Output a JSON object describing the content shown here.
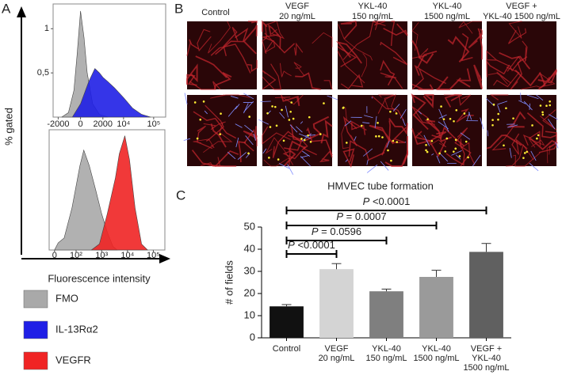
{
  "panel_labels": [
    "A",
    "B",
    "C"
  ],
  "chart_data": [
    {
      "type": "area",
      "ylabel": "% gated",
      "xscale": "asinh",
      "xlim": [
        -3000,
        250000
      ],
      "xticks": [
        -2000,
        0,
        2000,
        {
          "value": 10000,
          "label": "10⁴"
        },
        {
          "value": 100000,
          "label": "10⁵"
        }
      ],
      "ylim": [
        0,
        1.28
      ],
      "yticks": [
        1,
        {
          "value": 0.5,
          "label": "0,5"
        }
      ],
      "series": [
        {
          "name": "FMO",
          "color": "#a9a9a9",
          "x": [
            -1500,
            -800,
            -400,
            -200,
            0,
            200,
            400,
            800,
            1500,
            3000
          ],
          "values": [
            0,
            0.05,
            0.3,
            0.7,
            1.2,
            0.9,
            0.5,
            0.15,
            0.03,
            0
          ]
        },
        {
          "name": "IL-13Rα2",
          "color": "#1f1fe6",
          "x": [
            -500,
            0,
            500,
            1000,
            1500,
            2000,
            3000,
            5000,
            10000,
            20000,
            40000,
            80000
          ],
          "values": [
            0,
            0.15,
            0.4,
            0.55,
            0.5,
            0.45,
            0.4,
            0.33,
            0.22,
            0.1,
            0.03,
            0
          ]
        }
      ]
    },
    {
      "type": "area",
      "xlabel": "Fluorescence intensity",
      "xscale": "asinh",
      "xlim": [
        -15,
        280000
      ],
      "xticks": [
        0,
        {
          "value": 100,
          "label": "10²"
        },
        {
          "value": 1000,
          "label": "10³"
        },
        {
          "value": 10000,
          "label": "10⁴"
        },
        {
          "value": 100000,
          "label": "10⁵"
        }
      ],
      "ylim": [
        0,
        1
      ],
      "series": [
        {
          "name": "FMO",
          "color": "#a9a9a9",
          "x": [
            0,
            10,
            29,
            68,
            142,
            202,
            333,
            585,
            1000,
            1650,
            2720,
            4000
          ],
          "values": [
            0,
            0.06,
            0.1,
            0.35,
            0.7,
            0.83,
            0.7,
            0.5,
            0.3,
            0.15,
            0.03,
            0
          ]
        },
        {
          "name": "VEGFR",
          "color": "#f02424",
          "x": [
            400,
            820,
            1650,
            3400,
            4800,
            7900,
            12000,
            19700,
            35000,
            60000
          ],
          "values": [
            0,
            0.05,
            0.3,
            0.6,
            0.8,
            0.95,
            0.75,
            0.35,
            0.05,
            0
          ]
        }
      ]
    },
    {
      "type": "bar",
      "title": "HMVEC tube formation",
      "ylabel": "# of fields",
      "categories": [
        [
          "Control"
        ],
        [
          "VEGF",
          "20 ng/mL"
        ],
        [
          "YKL-40",
          "150 ng/mL"
        ],
        [
          "YKL-40",
          "1500 ng/mL"
        ],
        [
          "VEGF +",
          "YKL-40",
          "1500 ng/mL"
        ]
      ],
      "values": [
        14.2,
        31,
        21,
        27.5,
        38.8
      ],
      "errors": [
        0.8,
        2.5,
        1,
        3,
        3.8
      ],
      "colors": [
        "#111111",
        "#d4d4d4",
        "#7f7f7f",
        "#9a9a9a",
        "#606060"
      ],
      "ylim": [
        0,
        50
      ],
      "yticks": [
        0,
        10,
        20,
        30,
        40,
        50
      ],
      "annotations": [
        "P <0.0001",
        "P = 0.0596",
        "P = 0.0007",
        "P <0.0001"
      ]
    }
  ],
  "microscopy": {
    "columns": [
      [
        "Control"
      ],
      [
        "VEGF",
        "20 ng/mL"
      ],
      [
        "YKL-40",
        "150 ng/mL"
      ],
      [
        "YKL-40",
        "1500 ng/mL"
      ],
      [
        "VEGF +",
        "YKL-40 1500 ng/mL"
      ]
    ]
  }
}
